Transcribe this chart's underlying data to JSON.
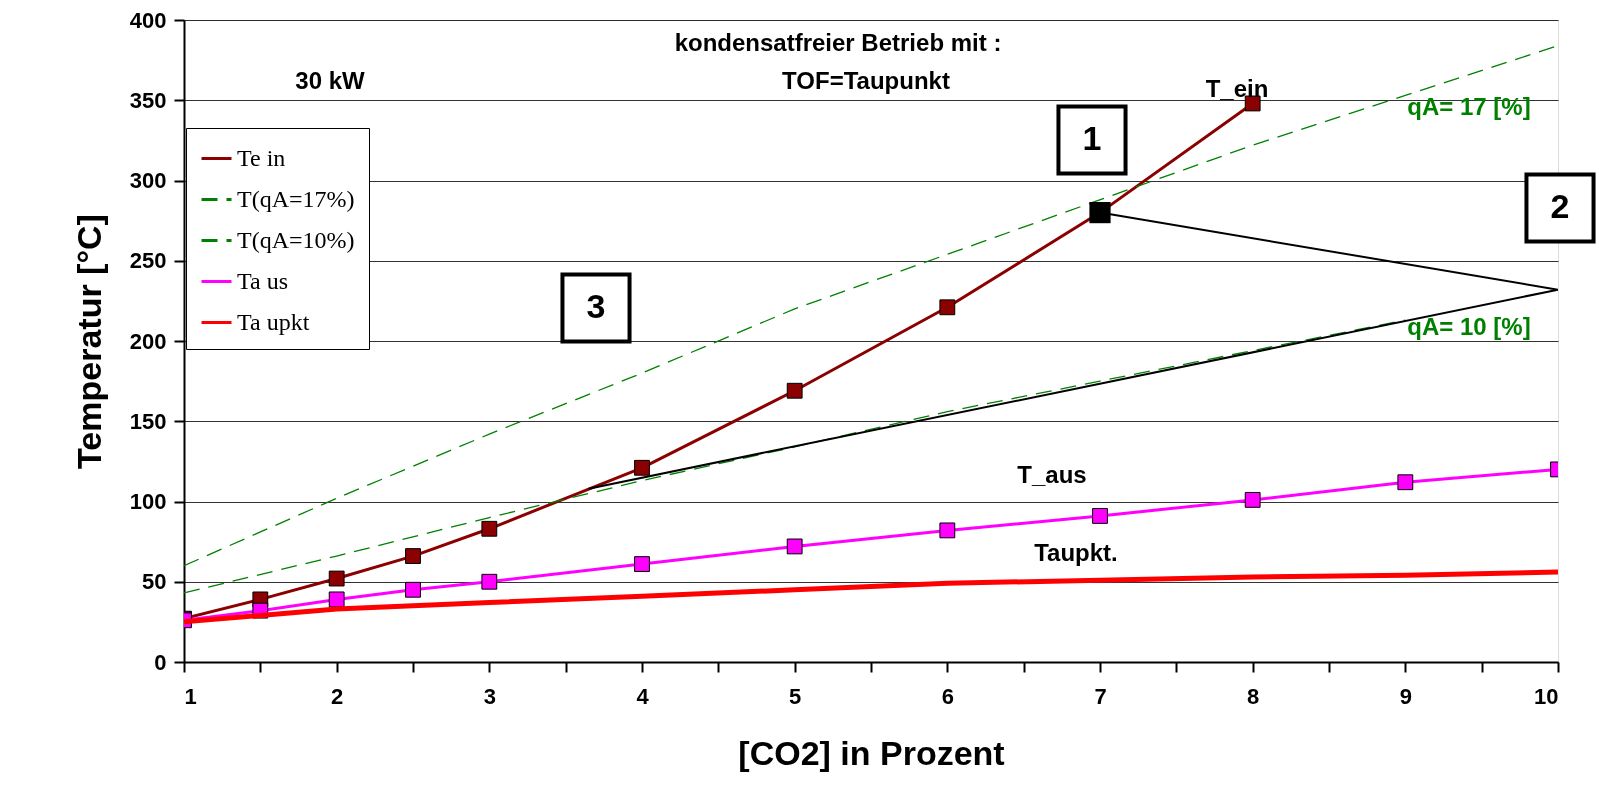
{
  "chart_data": {
    "type": "line",
    "xlabel": "[CO2] in Prozent",
    "ylabel": "Temperatur [°C]",
    "xlim": [
      1,
      10
    ],
    "ylim": [
      0,
      400
    ],
    "xticks": [
      1,
      {
        "value": 1.5,
        "label": null
      },
      2,
      {
        "value": 2.5,
        "label": null
      },
      3,
      {
        "value": 3.5,
        "label": null
      },
      4,
      {
        "value": 4.5,
        "label": null
      },
      5,
      {
        "value": 5.5,
        "label": null
      },
      6,
      {
        "value": 6.5,
        "label": null
      },
      7,
      {
        "value": 7.5,
        "label": null
      },
      8,
      {
        "value": 8.5,
        "label": null
      },
      9,
      {
        "value": 9.5,
        "label": null
      },
      10
    ],
    "yticks": [
      0,
      50,
      100,
      150,
      200,
      250,
      300,
      350,
      400
    ],
    "grid": "y",
    "legend": "top left",
    "series": [
      {
        "name": "Te in",
        "color": "#8b0000",
        "marker": "square",
        "line_style": "solid",
        "x": [
          1,
          1.5,
          2,
          2.5,
          3,
          4,
          5,
          6,
          7,
          8
        ],
        "values": [
          27,
          39,
          52,
          66,
          83,
          121,
          169,
          221,
          280,
          348
        ]
      },
      {
        "name": "T(qA=17%)",
        "color": "#008000",
        "marker": "none",
        "line_style": "dashed",
        "x": [
          1,
          2,
          3,
          4,
          5,
          6,
          7,
          8,
          9,
          10
        ],
        "values": [
          60,
          102,
          142,
          180,
          220,
          254,
          null,
          322,
          353,
          384
        ]
      },
      {
        "name": "T(qA=10%)",
        "color": "#008000",
        "marker": "none",
        "line_style": "dashed",
        "x": [
          1,
          2,
          3,
          4,
          5,
          6,
          7,
          8,
          9
        ],
        "values": [
          43,
          66,
          90,
          113,
          134,
          156,
          175,
          194,
          213
        ]
      },
      {
        "name": "Ta us",
        "color": "#ff00ff",
        "marker": "square",
        "line_style": "solid",
        "x": [
          1,
          1.5,
          2,
          2.5,
          3,
          4,
          5,
          6,
          7,
          8,
          9,
          10
        ],
        "values": [
          26,
          32,
          39,
          45,
          50,
          61,
          72,
          82,
          91,
          101,
          112,
          120
        ]
      },
      {
        "name": "Ta upkt",
        "color": "#ff0000",
        "marker": "none",
        "line_style": "solid",
        "x": [
          1,
          2,
          3,
          4,
          5,
          6,
          7,
          8,
          9,
          10
        ],
        "values": [
          25,
          33,
          37,
          41,
          45,
          49,
          51,
          53,
          54,
          56
        ]
      },
      {
        "color": "#000000",
        "marker": "none",
        "line_style": "solid",
        "x": [
          7,
          10,
          3.65
        ],
        "values": [
          280,
          232,
          108
        ]
      },
      {
        "type": "scatter",
        "color": "#000000",
        "marker": "square",
        "x": [
          7
        ],
        "values": [
          280
        ]
      }
    ],
    "annotations": [
      "30 kW",
      "kondensatfreier Betrieb mit :",
      "TOF=Taupunkt",
      "T_ein",
      "qA= 17 [%]",
      "qA= 10 [%]",
      "T_aus",
      "Taupkt.",
      "1",
      "2",
      "3"
    ]
  }
}
